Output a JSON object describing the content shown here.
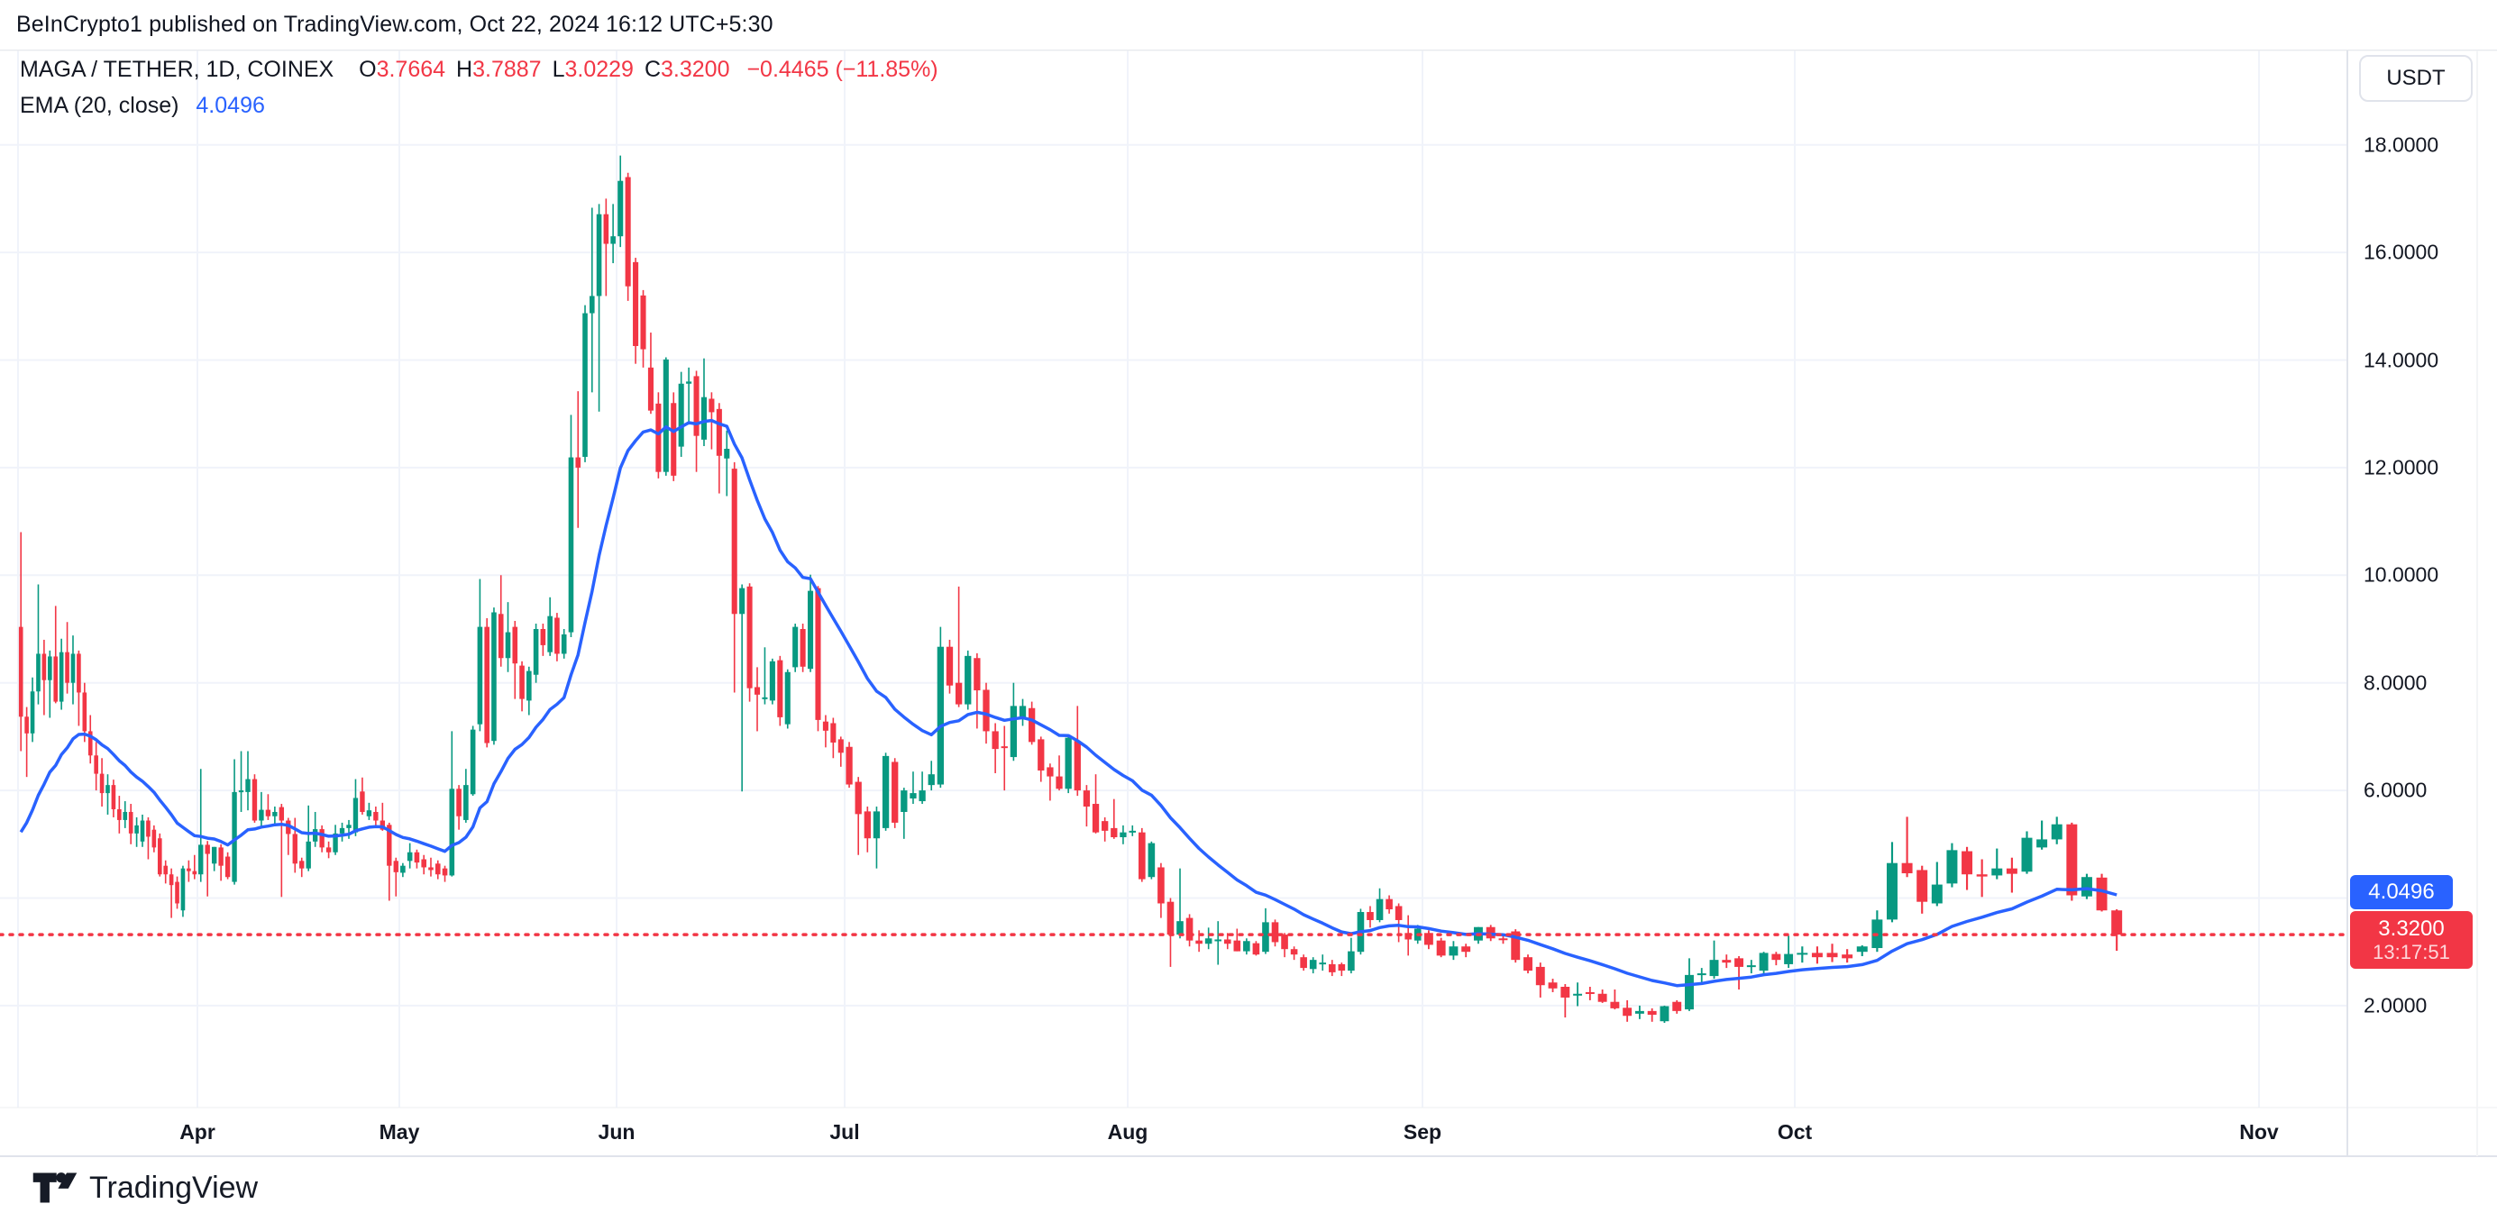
{
  "header": {
    "text": "BeInCrypto1 published on TradingView.com, Oct 22, 2024 16:12 UTC+5:30"
  },
  "legend": {
    "symbol": "MAGA / TETHER, 1D, COINEX",
    "ohlc": [
      {
        "k": "O",
        "v": "3.7664"
      },
      {
        "k": "H",
        "v": "3.7887"
      },
      {
        "k": "L",
        "v": "3.0229"
      },
      {
        "k": "C",
        "v": "3.3200"
      }
    ],
    "change": "−0.4465 (−11.85%)",
    "ema_label": "EMA (20, close)",
    "ema_value": "4.0496"
  },
  "toolbar": {
    "currency_button": "USDT"
  },
  "price_labels": {
    "ema_tag": "4.0496",
    "last_price": "3.3200",
    "countdown": "13:17:51"
  },
  "logo": {
    "text": "TradingView"
  },
  "colors": {
    "up": "#089981",
    "down": "#F23645",
    "ema": "#2962FF",
    "last_price_line": "#F23645",
    "grid": "#F0F3FA",
    "border": "#E0E3EB",
    "text": "#131722",
    "ema_tag_bg": "#2962FF",
    "last_tag_bg": "#F23645"
  },
  "chart_data": {
    "type": "candlestick",
    "title": "MAGA / TETHER, 1D, COINEX",
    "interval": "1D",
    "start_date": "2024-03-01",
    "end_date": "2024-10-22",
    "ylim": [
      1.3,
      18.9
    ],
    "grid": true,
    "y_ticks": [
      {
        "value": 18,
        "label": "18.0000"
      },
      {
        "value": 16,
        "label": "16.0000"
      },
      {
        "value": 14,
        "label": "14.0000"
      },
      {
        "value": 12,
        "label": "12.0000"
      },
      {
        "value": 10,
        "label": "10.0000"
      },
      {
        "value": 8,
        "label": "8.0000"
      },
      {
        "value": 6,
        "label": "6.0000"
      },
      {
        "value": 4,
        "label": "4.0000"
      },
      {
        "value": 2,
        "label": "2.0000"
      }
    ],
    "x_ticks": [
      "Apr",
      "May",
      "Jun",
      "Jul",
      "Aug",
      "Sep",
      "Oct",
      "Nov"
    ],
    "last_price": 3.32,
    "ema": {
      "label": "EMA (20, close)",
      "period": 20,
      "last_value": 4.0496
    },
    "ohlc": [
      [
        9.04,
        10.8,
        6.73,
        7.37
      ],
      [
        7.37,
        7.55,
        6.25,
        7.06
      ],
      [
        7.06,
        8.1,
        6.9,
        7.84
      ],
      [
        7.84,
        9.83,
        7.6,
        8.54
      ],
      [
        8.54,
        8.8,
        7.4,
        8.05
      ],
      [
        8.05,
        8.6,
        7.35,
        8.49
      ],
      [
        8.49,
        9.43,
        7.62,
        7.65
      ],
      [
        7.65,
        8.82,
        7.5,
        8.57
      ],
      [
        8.57,
        9.13,
        7.8,
        8.0
      ],
      [
        8.0,
        8.88,
        7.6,
        8.54
      ],
      [
        8.54,
        8.6,
        7.2,
        7.82
      ],
      [
        7.82,
        8.0,
        6.9,
        7.1
      ],
      [
        7.1,
        7.4,
        6.5,
        6.65
      ],
      [
        6.65,
        6.9,
        6.0,
        6.31
      ],
      [
        6.31,
        6.6,
        5.7,
        5.95
      ],
      [
        5.95,
        6.3,
        5.55,
        6.1
      ],
      [
        6.1,
        6.2,
        5.5,
        5.65
      ],
      [
        5.65,
        5.9,
        5.2,
        5.45
      ],
      [
        5.45,
        5.8,
        5.3,
        5.6
      ],
      [
        5.6,
        5.75,
        5.0,
        5.2
      ],
      [
        5.2,
        5.5,
        4.95,
        5.35
      ],
      [
        5.05,
        5.55,
        4.95,
        5.44
      ],
      [
        5.44,
        5.5,
        4.72,
        5.14
      ],
      [
        5.27,
        5.35,
        4.85,
        4.94
      ],
      [
        5.11,
        5.2,
        4.4,
        4.44
      ],
      [
        4.6,
        4.7,
        4.27,
        4.44
      ],
      [
        4.44,
        4.55,
        3.63,
        4.24
      ],
      [
        4.3,
        4.4,
        3.8,
        3.9
      ],
      [
        3.77,
        4.6,
        3.65,
        4.55
      ],
      [
        4.55,
        4.7,
        4.3,
        4.5
      ],
      [
        4.5,
        4.8,
        4.35,
        4.44
      ],
      [
        4.44,
        6.4,
        4.3,
        4.99
      ],
      [
        4.99,
        5.06,
        4.03,
        4.82
      ],
      [
        4.64,
        4.95,
        4.5,
        4.95
      ],
      [
        4.94,
        5.0,
        4.32,
        4.6
      ],
      [
        4.77,
        4.85,
        4.35,
        4.39
      ],
      [
        4.3,
        6.58,
        4.25,
        5.97
      ],
      [
        5.97,
        6.73,
        5.6,
        6.0
      ],
      [
        5.97,
        6.73,
        5.63,
        6.21
      ],
      [
        6.21,
        6.3,
        5.4,
        5.44
      ],
      [
        5.44,
        5.97,
        5.3,
        5.64
      ],
      [
        5.64,
        5.93,
        5.45,
        5.52
      ],
      [
        5.52,
        5.7,
        5.35,
        5.6
      ],
      [
        5.69,
        5.75,
        4.02,
        5.44
      ],
      [
        5.44,
        5.49,
        4.8,
        5.19
      ],
      [
        5.19,
        5.49,
        4.47,
        4.64
      ],
      [
        4.69,
        4.75,
        4.39,
        4.55
      ],
      [
        4.55,
        5.72,
        4.5,
        5.05
      ],
      [
        5.05,
        5.6,
        4.95,
        5.28
      ],
      [
        5.28,
        5.35,
        4.85,
        4.94
      ],
      [
        4.94,
        5.05,
        4.74,
        4.85
      ],
      [
        4.85,
        5.36,
        4.8,
        5.2
      ],
      [
        5.2,
        5.4,
        5.05,
        5.3
      ],
      [
        5.3,
        5.45,
        5.1,
        5.36
      ],
      [
        5.22,
        6.21,
        5.15,
        5.86
      ],
      [
        5.98,
        6.24,
        5.55,
        5.6
      ],
      [
        5.52,
        5.77,
        5.45,
        5.63
      ],
      [
        5.6,
        5.7,
        5.35,
        5.44
      ],
      [
        5.44,
        5.77,
        5.25,
        5.27
      ],
      [
        5.36,
        5.4,
        3.95,
        4.6
      ],
      [
        4.69,
        4.75,
        4.03,
        4.48
      ],
      [
        4.47,
        4.65,
        4.39,
        4.6
      ],
      [
        4.69,
        5.02,
        4.55,
        4.85
      ],
      [
        4.85,
        4.9,
        4.55,
        4.66
      ],
      [
        4.72,
        4.8,
        4.44,
        4.57
      ],
      [
        4.57,
        4.75,
        4.4,
        4.52
      ],
      [
        4.64,
        4.7,
        4.35,
        4.44
      ],
      [
        4.55,
        4.6,
        4.3,
        4.42
      ],
      [
        4.42,
        7.1,
        4.4,
        6.03
      ],
      [
        6.03,
        6.1,
        5.27,
        5.52
      ],
      [
        5.45,
        6.4,
        5.4,
        6.1
      ],
      [
        5.93,
        7.2,
        5.9,
        7.13
      ],
      [
        7.23,
        9.93,
        7.1,
        9.04
      ],
      [
        9.04,
        9.2,
        6.8,
        6.88
      ],
      [
        6.92,
        9.4,
        6.85,
        9.31
      ],
      [
        9.28,
        10.0,
        8.3,
        8.46
      ],
      [
        8.46,
        9.5,
        8.2,
        8.94
      ],
      [
        9.04,
        9.15,
        7.7,
        8.36
      ],
      [
        8.32,
        8.4,
        7.47,
        7.7
      ],
      [
        7.67,
        8.3,
        7.4,
        8.22
      ],
      [
        8.15,
        9.1,
        8.0,
        9.0
      ],
      [
        9.0,
        9.1,
        8.5,
        8.7
      ],
      [
        8.57,
        9.59,
        8.5,
        9.24
      ],
      [
        9.21,
        9.3,
        8.4,
        8.54
      ],
      [
        8.54,
        9.0,
        8.45,
        8.9
      ],
      [
        8.94,
        12.98,
        8.85,
        12.19
      ],
      [
        12.19,
        13.42,
        10.88,
        12.0
      ],
      [
        12.2,
        15.02,
        12.1,
        14.87
      ],
      [
        14.87,
        16.83,
        13.4,
        15.19
      ],
      [
        15.19,
        16.9,
        13.04,
        16.71
      ],
      [
        16.71,
        17.0,
        15.19,
        16.16
      ],
      [
        16.16,
        16.9,
        15.8,
        16.3
      ],
      [
        16.3,
        17.8,
        16.1,
        17.33
      ],
      [
        17.4,
        17.48,
        15.1,
        15.37
      ],
      [
        15.82,
        15.9,
        13.93,
        14.26
      ],
      [
        15.2,
        15.3,
        13.86,
        14.2
      ],
      [
        13.86,
        14.51,
        13.0,
        13.06
      ],
      [
        13.19,
        13.4,
        11.8,
        11.92
      ],
      [
        11.92,
        14.05,
        11.85,
        14.01
      ],
      [
        13.2,
        13.4,
        11.75,
        11.85
      ],
      [
        12.39,
        13.78,
        12.2,
        13.56
      ],
      [
        13.56,
        13.86,
        12.8,
        13.6
      ],
      [
        13.7,
        13.8,
        11.92,
        12.59
      ],
      [
        12.52,
        14.03,
        12.4,
        13.31
      ],
      [
        13.28,
        13.4,
        12.34,
        13.03
      ],
      [
        13.09,
        13.2,
        11.52,
        12.22
      ],
      [
        12.17,
        12.69,
        11.47,
        12.35
      ],
      [
        11.98,
        12.1,
        7.82,
        9.28
      ],
      [
        9.28,
        9.83,
        5.98,
        9.76
      ],
      [
        9.79,
        9.85,
        7.65,
        7.9
      ],
      [
        7.92,
        8.29,
        7.1,
        7.78
      ],
      [
        7.73,
        8.66,
        7.6,
        7.73
      ],
      [
        7.67,
        8.45,
        7.6,
        8.4
      ],
      [
        8.42,
        8.5,
        7.2,
        7.36
      ],
      [
        7.23,
        8.25,
        7.15,
        8.2
      ],
      [
        8.29,
        9.1,
        8.2,
        9.04
      ],
      [
        9.0,
        9.1,
        8.2,
        8.3
      ],
      [
        8.26,
        10.01,
        8.2,
        9.71
      ],
      [
        9.76,
        9.8,
        7.1,
        7.31
      ],
      [
        7.28,
        7.4,
        6.8,
        7.11
      ],
      [
        7.25,
        7.35,
        6.6,
        6.89
      ],
      [
        6.95,
        7.0,
        6.44,
        6.7
      ],
      [
        6.81,
        6.9,
        6.05,
        6.11
      ],
      [
        6.16,
        6.25,
        4.8,
        5.56
      ],
      [
        5.61,
        5.7,
        4.85,
        5.11
      ],
      [
        5.11,
        5.7,
        4.55,
        5.61
      ],
      [
        5.3,
        6.7,
        5.25,
        6.64
      ],
      [
        6.53,
        6.6,
        5.3,
        5.4
      ],
      [
        5.6,
        6.05,
        5.1,
        6.0
      ],
      [
        5.85,
        6.35,
        5.75,
        5.95
      ],
      [
        5.8,
        6.35,
        5.75,
        6.0
      ],
      [
        6.1,
        6.55,
        6.0,
        6.3
      ],
      [
        6.11,
        9.04,
        6.05,
        8.67
      ],
      [
        8.67,
        8.8,
        7.8,
        7.95
      ],
      [
        8.0,
        9.79,
        7.55,
        7.6
      ],
      [
        7.6,
        8.6,
        7.5,
        8.5
      ],
      [
        8.46,
        8.55,
        7.15,
        7.86
      ],
      [
        7.87,
        8.0,
        6.87,
        7.1
      ],
      [
        7.1,
        7.25,
        6.32,
        6.77
      ],
      [
        6.82,
        7.2,
        6.0,
        6.8
      ],
      [
        6.62,
        8.0,
        6.55,
        7.57
      ],
      [
        7.35,
        7.7,
        7.2,
        7.57
      ],
      [
        7.53,
        7.65,
        6.85,
        6.9
      ],
      [
        6.95,
        7.0,
        6.16,
        6.37
      ],
      [
        6.43,
        6.5,
        5.81,
        6.26
      ],
      [
        6.26,
        6.65,
        6.0,
        6.03
      ],
      [
        6.03,
        7.0,
        5.95,
        6.98
      ],
      [
        6.92,
        7.57,
        5.9,
        6.0
      ],
      [
        6.0,
        6.1,
        5.33,
        5.7
      ],
      [
        5.75,
        6.3,
        5.2,
        5.22
      ],
      [
        5.43,
        5.5,
        5.05,
        5.25
      ],
      [
        5.3,
        5.84,
        5.1,
        5.13
      ],
      [
        5.13,
        5.35,
        5.0,
        5.22
      ],
      [
        5.25,
        5.35,
        5.15,
        5.25
      ],
      [
        5.22,
        5.3,
        4.3,
        4.35
      ],
      [
        4.39,
        5.05,
        4.35,
        5.02
      ],
      [
        4.57,
        4.65,
        3.63,
        3.9
      ],
      [
        3.93,
        4.0,
        2.72,
        3.32
      ],
      [
        3.32,
        4.55,
        3.25,
        3.57
      ],
      [
        3.63,
        3.7,
        3.1,
        3.21
      ],
      [
        3.21,
        3.4,
        3.0,
        3.15
      ],
      [
        3.15,
        3.45,
        3.05,
        3.25
      ],
      [
        3.23,
        3.57,
        2.76,
        3.23
      ],
      [
        3.23,
        3.35,
        3.05,
        3.15
      ],
      [
        3.21,
        3.43,
        3.01,
        3.01
      ],
      [
        3.01,
        3.25,
        2.95,
        3.2
      ],
      [
        3.16,
        3.2,
        2.93,
        2.95
      ],
      [
        3.0,
        3.81,
        2.96,
        3.55
      ],
      [
        3.55,
        3.6,
        3.1,
        3.18
      ],
      [
        3.32,
        3.35,
        2.9,
        3.05
      ],
      [
        3.05,
        3.1,
        2.85,
        2.95
      ],
      [
        2.9,
        2.95,
        2.65,
        2.7
      ],
      [
        2.68,
        2.9,
        2.6,
        2.85
      ],
      [
        2.79,
        2.95,
        2.65,
        2.8
      ],
      [
        2.77,
        2.85,
        2.55,
        2.62
      ],
      [
        2.77,
        2.8,
        2.55,
        2.65
      ],
      [
        2.65,
        3.26,
        2.6,
        3.01
      ],
      [
        3.0,
        3.8,
        2.95,
        3.74
      ],
      [
        3.74,
        3.85,
        3.45,
        3.59
      ],
      [
        3.59,
        4.18,
        3.55,
        3.98
      ],
      [
        3.98,
        4.05,
        3.71,
        3.79
      ],
      [
        3.85,
        3.9,
        3.18,
        3.59
      ],
      [
        3.35,
        3.68,
        2.93,
        3.23
      ],
      [
        3.21,
        3.5,
        3.15,
        3.43
      ],
      [
        3.35,
        3.4,
        3.05,
        3.13
      ],
      [
        3.21,
        3.26,
        2.9,
        2.93
      ],
      [
        2.93,
        3.2,
        2.85,
        3.1
      ],
      [
        3.1,
        3.15,
        2.9,
        3.0
      ],
      [
        3.21,
        3.46,
        3.15,
        3.46
      ],
      [
        3.46,
        3.5,
        3.2,
        3.25
      ],
      [
        3.25,
        3.3,
        3.15,
        3.22
      ],
      [
        3.38,
        3.42,
        2.8,
        2.85
      ],
      [
        2.9,
        2.95,
        2.6,
        2.65
      ],
      [
        2.72,
        2.8,
        2.15,
        2.38
      ],
      [
        2.43,
        2.5,
        2.25,
        2.32
      ],
      [
        2.35,
        2.4,
        1.78,
        2.15
      ],
      [
        2.22,
        2.43,
        1.99,
        2.22
      ],
      [
        2.25,
        2.35,
        2.1,
        2.22
      ],
      [
        2.22,
        2.3,
        2.05,
        2.07
      ],
      [
        2.07,
        2.3,
        1.93,
        1.95
      ],
      [
        1.96,
        2.1,
        1.7,
        1.81
      ],
      [
        1.85,
        2.0,
        1.75,
        1.9
      ],
      [
        1.9,
        1.95,
        1.7,
        1.83
      ],
      [
        1.71,
        2.0,
        1.68,
        1.99
      ],
      [
        2.07,
        2.1,
        1.85,
        1.9
      ],
      [
        1.93,
        2.88,
        1.9,
        2.57
      ],
      [
        2.57,
        2.7,
        2.4,
        2.6
      ],
      [
        2.55,
        3.21,
        2.5,
        2.85
      ],
      [
        2.85,
        2.95,
        2.7,
        2.8
      ],
      [
        2.88,
        2.92,
        2.3,
        2.72
      ],
      [
        2.72,
        2.85,
        2.6,
        2.75
      ],
      [
        2.65,
        3.0,
        2.6,
        2.98
      ],
      [
        2.96,
        3.0,
        2.75,
        2.85
      ],
      [
        2.77,
        3.3,
        2.7,
        2.96
      ],
      [
        2.96,
        3.1,
        2.8,
        2.98
      ],
      [
        2.98,
        3.1,
        2.78,
        2.9
      ],
      [
        2.98,
        3.15,
        2.81,
        2.9
      ],
      [
        2.95,
        3.05,
        2.8,
        2.88
      ],
      [
        3.0,
        3.12,
        2.92,
        3.1
      ],
      [
        3.07,
        3.77,
        3.0,
        3.6
      ],
      [
        3.6,
        5.04,
        3.55,
        4.65
      ],
      [
        4.65,
        5.51,
        4.39,
        4.46
      ],
      [
        4.52,
        4.6,
        3.71,
        3.93
      ],
      [
        3.9,
        4.67,
        3.85,
        4.25
      ],
      [
        4.27,
        5.02,
        4.2,
        4.89
      ],
      [
        4.87,
        4.95,
        4.15,
        4.44
      ],
      [
        4.44,
        4.72,
        4.02,
        4.4
      ],
      [
        4.42,
        4.92,
        4.35,
        4.55
      ],
      [
        4.55,
        4.75,
        4.1,
        4.45
      ],
      [
        4.49,
        5.24,
        4.45,
        5.12
      ],
      [
        4.94,
        5.44,
        4.9,
        5.09
      ],
      [
        5.09,
        5.51,
        5.0,
        5.37
      ],
      [
        5.37,
        5.4,
        3.95,
        4.05
      ],
      [
        4.03,
        4.45,
        3.98,
        4.39
      ],
      [
        4.38,
        4.45,
        3.75,
        3.77
      ],
      [
        3.77,
        3.79,
        3.02,
        3.32
      ]
    ]
  }
}
